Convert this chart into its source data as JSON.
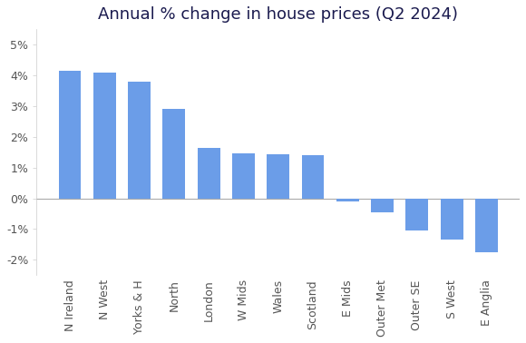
{
  "title": "Annual % change in house prices (Q2 2024)",
  "categories": [
    "N Ireland",
    "N West",
    "Yorks & H",
    "North",
    "London",
    "W Mids",
    "Wales",
    "Scotland",
    "E Mids",
    "Outer Met",
    "Outer SE",
    "S West",
    "E Anglia"
  ],
  "values": [
    4.15,
    4.1,
    3.8,
    2.9,
    1.65,
    1.45,
    1.42,
    1.4,
    -0.1,
    -0.45,
    -1.05,
    -1.35,
    -1.75
  ],
  "bar_color": "#6b9de8",
  "ylim": [
    -2.5,
    5.5
  ],
  "yticks": [
    -2,
    -1,
    0,
    1,
    2,
    3,
    4,
    5
  ],
  "title_fontsize": 13,
  "tick_fontsize": 9,
  "title_color": "#1a1a4e",
  "tick_color": "#555555",
  "bg_color": "#ffffff",
  "zero_line_color": "#aaaaaa",
  "spine_color": "#cccccc"
}
